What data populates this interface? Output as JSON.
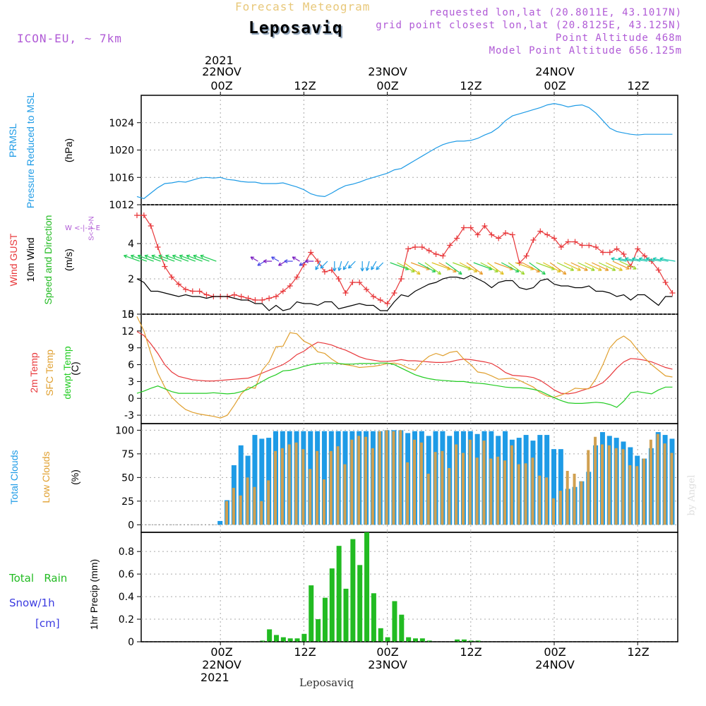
{
  "header": {
    "product": "Forecast Meteogram",
    "station": "Leposaviq",
    "model": "ICON-EU, ~ 7km",
    "requested": "requested lon,lat (20.8011E, 43.1017N)",
    "grid_point": "grid point closest lon,lat (20.8125E, 43.125N)",
    "point_altitude": "Point Altitude 468m",
    "model_altitude": "Model Point Altitude 656.125m",
    "footer_station": "Leposaviq",
    "watermark": "by Angel"
  },
  "colors": {
    "pressure": "#1e9be6",
    "gust": "#e8373a",
    "wind": "#000000",
    "dir": "#22bb22",
    "temp2m": "#e8373a",
    "sfc": "#e0a030",
    "dewpt": "#22cc22",
    "total_clouds": "#1e9be6",
    "low_clouds": "#d0a050",
    "rain": "#22bb22",
    "snow": "#3a3ae0",
    "annot": "#b05ad6",
    "grid": "#aaaaaa",
    "product": "#e8c87a"
  },
  "panel_labels": {
    "p1_a": "PRMSL",
    "p1_b": "Pressure Reduced to MSL",
    "p1_unit": "(hPa)",
    "p2_a": "Wind GUST",
    "p2_b": "10m Wind",
    "p2_c": "Speed and Direction",
    "p2_unit": "(m/s)",
    "compass_ns": "S<-|->N",
    "compass_we": "W <-|-> E",
    "p3_a": "2m Temp",
    "p3_b": "SFC Temp",
    "p3_c": "dewpt Temp",
    "p3_unit": "(C)",
    "p4_a": "Total Clouds",
    "p4_b": "Low Clouds",
    "p4_unit": "(%)",
    "p5_a": "1hr Precip (mm)",
    "rain_label": "Total   Rain",
    "snow_label": "Snow/1h",
    "snow_unit": "[cm]"
  },
  "time_axis": {
    "top_year": "2021",
    "bottom_year": "2021",
    "ticks": [
      {
        "hour": 12,
        "hh": "00Z",
        "date": "22NOV"
      },
      {
        "hour": 24,
        "hh": "12Z",
        "date": ""
      },
      {
        "hour": 36,
        "hh": "00Z",
        "date": "23NOV"
      },
      {
        "hour": 48,
        "hh": "12Z",
        "date": ""
      },
      {
        "hour": 60,
        "hh": "00Z",
        "date": "24NOV"
      },
      {
        "hour": 72,
        "hh": "12Z",
        "date": ""
      }
    ]
  },
  "chart_data": [
    {
      "type": "line",
      "title": "PRMSL Pressure Reduced to MSL",
      "ylabel": "hPa",
      "ylim": [
        1012,
        1028
      ],
      "yticks": [
        1012,
        1016,
        1020,
        1024
      ],
      "x_hours": "0 to 77 hourly, 12 = 22NOV 00Z",
      "series": [
        {
          "name": "PRMSL",
          "x": [
            0,
            1,
            2,
            3,
            4,
            5,
            6,
            7,
            8,
            9,
            10,
            11,
            12,
            13,
            14,
            15,
            16,
            17,
            18,
            19,
            20,
            21,
            22,
            23,
            24,
            25,
            26,
            27,
            28,
            29,
            30,
            31,
            32,
            33,
            34,
            35,
            36,
            37,
            38,
            39,
            40,
            41,
            42,
            43,
            44,
            45,
            46,
            47,
            48,
            49,
            50,
            51,
            52,
            53,
            54,
            55,
            56,
            57,
            58,
            59,
            60,
            61,
            62,
            63,
            64,
            65,
            66,
            67,
            68,
            69,
            70,
            71,
            72,
            73,
            74,
            75,
            76,
            77
          ],
          "values": [
            1013.2,
            1012.9,
            1013.7,
            1014.5,
            1015.1,
            1015.2,
            1015.4,
            1015.3,
            1015.6,
            1015.9,
            1016.0,
            1015.9,
            1016.0,
            1015.7,
            1015.6,
            1015.4,
            1015.3,
            1015.3,
            1015.1,
            1015.1,
            1015.1,
            1015.2,
            1014.9,
            1014.6,
            1014.2,
            1013.6,
            1013.3,
            1013.2,
            1013.7,
            1014.3,
            1014.8,
            1015.0,
            1015.3,
            1015.7,
            1016.0,
            1016.3,
            1016.6,
            1017.1,
            1017.3,
            1017.9,
            1018.5,
            1019.1,
            1019.7,
            1020.3,
            1020.8,
            1021.1,
            1021.3,
            1021.3,
            1021.4,
            1021.7,
            1022.2,
            1022.6,
            1023.3,
            1024.3,
            1025.0,
            1025.3,
            1025.6,
            1025.9,
            1026.2,
            1026.6,
            1026.8,
            1026.6,
            1026.3,
            1026.5,
            1026.6,
            1026.2,
            1025.4,
            1024.3,
            1023.2,
            1022.7,
            1022.5,
            1022.3,
            1022.2,
            1022.3,
            1022.3,
            1022.3,
            1022.3,
            1022.3
          ]
        }
      ]
    },
    {
      "type": "line",
      "title": "Wind GUST / 10m Wind Speed and Direction",
      "ylabel": "m/s",
      "ylim": [
        0,
        6.2
      ],
      "yticks": [
        0,
        2,
        4
      ],
      "series": [
        {
          "name": "Wind GUST",
          "x_start": 0,
          "values": [
            5.6,
            5.6,
            5.0,
            3.8,
            2.7,
            2.1,
            1.7,
            1.4,
            1.3,
            1.3,
            1.1,
            1.0,
            1.0,
            1.0,
            1.1,
            1.0,
            0.9,
            0.8,
            0.8,
            0.9,
            1.0,
            1.3,
            1.6,
            2.1,
            2.8,
            3.5,
            3.0,
            2.4,
            2.5,
            2.0,
            1.2,
            1.8,
            1.8,
            1.4,
            1.0,
            0.8,
            0.6,
            1.2,
            2.0,
            3.7,
            3.8,
            3.8,
            3.6,
            3.4,
            3.3,
            3.9,
            4.3,
            4.9,
            4.9,
            4.5,
            5.0,
            4.5,
            4.3,
            4.6,
            4.5,
            2.9,
            3.3,
            4.2,
            4.7,
            4.5,
            4.3,
            3.8,
            4.1,
            4.1,
            3.9,
            3.9,
            3.8,
            3.5,
            3.5,
            3.7,
            3.4,
            2.7,
            3.7,
            3.3,
            3.0,
            2.5,
            1.8,
            1.2
          ]
        },
        {
          "name": "10m Wind",
          "x_start": 0,
          "values": [
            2.0,
            1.8,
            1.3,
            1.3,
            1.2,
            1.1,
            1.0,
            1.1,
            1.0,
            1.0,
            0.9,
            1.0,
            1.0,
            1.0,
            0.9,
            0.8,
            0.8,
            0.6,
            0.6,
            0.2,
            0.5,
            0.2,
            0.3,
            0.7,
            0.6,
            0.6,
            0.5,
            0.7,
            0.7,
            0.3,
            0.4,
            0.5,
            0.6,
            0.5,
            0.5,
            0.2,
            0.2,
            0.7,
            1.1,
            1.0,
            1.3,
            1.5,
            1.7,
            1.8,
            2.0,
            2.1,
            2.1,
            2.0,
            2.2,
            2.0,
            1.8,
            1.5,
            1.8,
            1.9,
            1.9,
            1.5,
            1.4,
            1.5,
            1.9,
            2.0,
            1.7,
            1.6,
            1.6,
            1.5,
            1.5,
            1.6,
            1.3,
            1.3,
            1.2,
            1.0,
            1.1,
            0.8,
            1.1,
            1.1,
            0.8,
            0.5,
            1.0,
            1.0
          ]
        }
      ],
      "direction_arrows": "every hour, 0-4 m/s color-coded"
    },
    {
      "type": "line",
      "title": "2m Temp / SFC Temp / dewpt Temp",
      "ylabel": "C",
      "ylim": [
        -4.5,
        15
      ],
      "yticks": [
        -3,
        0,
        3,
        6,
        9,
        12,
        15
      ],
      "series": [
        {
          "name": "2m Temp",
          "x_start": 0,
          "values": [
            11.9,
            11.2,
            9.7,
            8.0,
            6.0,
            4.7,
            3.9,
            3.6,
            3.3,
            3.2,
            3.1,
            3.1,
            3.2,
            3.3,
            3.4,
            3.5,
            3.6,
            4.0,
            4.5,
            5.0,
            5.5,
            6.0,
            6.8,
            7.8,
            8.4,
            9.3,
            10.0,
            9.8,
            9.5,
            9.0,
            8.6,
            8.0,
            7.4,
            7.0,
            6.8,
            6.6,
            6.6,
            6.7,
            6.9,
            6.7,
            6.7,
            6.6,
            6.5,
            6.4,
            6.4,
            6.5,
            6.8,
            7.0,
            6.9,
            6.7,
            6.5,
            6.2,
            5.5,
            4.6,
            4.1,
            4.0,
            3.9,
            3.7,
            3.2,
            2.4,
            1.5,
            0.9,
            0.8,
            1.0,
            1.4,
            1.8,
            2.2,
            2.8,
            4.0,
            5.4,
            6.5,
            7.1,
            7.0,
            6.8,
            6.5,
            6.0,
            5.5,
            5.2
          ]
        },
        {
          "name": "SFC Temp",
          "x_start": 0,
          "values": [
            14.6,
            12.0,
            8.0,
            4.5,
            2.0,
            0.2,
            -1.0,
            -2.0,
            -2.5,
            -2.8,
            -3.0,
            -3.2,
            -3.5,
            -3.0,
            -1.2,
            0.8,
            2.0,
            1.8,
            5.0,
            6.5,
            9.2,
            9.3,
            11.7,
            11.5,
            10.2,
            9.6,
            8.3,
            8.0,
            7.0,
            6.2,
            6.0,
            5.8,
            5.5,
            5.6,
            5.7,
            5.9,
            6.2,
            6.3,
            6.0,
            5.4,
            5.0,
            6.5,
            7.5,
            8.0,
            7.6,
            8.2,
            8.4,
            7.0,
            6.0,
            4.7,
            4.5,
            4.0,
            3.4,
            3.5,
            3.6,
            3.2,
            2.6,
            2.0,
            1.0,
            0.4,
            0.2,
            0.6,
            1.1,
            1.8,
            1.7,
            1.7,
            3.5,
            6.0,
            9.0,
            10.4,
            11.1,
            10.2,
            8.6,
            7.2,
            6.0,
            5.0,
            4.0,
            3.8
          ]
        },
        {
          "name": "dewpt Temp",
          "x_start": 0,
          "values": [
            0.9,
            1.3,
            1.8,
            2.2,
            1.7,
            1.2,
            0.9,
            0.9,
            0.9,
            0.9,
            0.9,
            1.0,
            0.9,
            0.8,
            0.9,
            1.2,
            1.6,
            2.3,
            3.0,
            3.7,
            4.2,
            4.9,
            5.0,
            5.3,
            5.7,
            6.0,
            6.2,
            6.3,
            6.3,
            6.2,
            6.1,
            6.1,
            6.2,
            6.2,
            6.2,
            6.3,
            6.3,
            6.0,
            5.4,
            4.8,
            4.2,
            3.8,
            3.5,
            3.3,
            3.2,
            3.1,
            3.0,
            3.0,
            2.8,
            2.7,
            2.6,
            2.4,
            2.2,
            2.0,
            1.9,
            1.9,
            1.8,
            1.6,
            1.3,
            0.7,
            0.1,
            -0.4,
            -0.8,
            -0.9,
            -0.9,
            -0.8,
            -0.7,
            -0.8,
            -1.1,
            -1.6,
            -0.5,
            1.0,
            1.2,
            1.0,
            0.8,
            1.5,
            2.0,
            2.0
          ]
        }
      ]
    },
    {
      "type": "bar",
      "title": "Total Clouds / Low Clouds",
      "ylabel": "%",
      "ylim": [
        -8,
        107
      ],
      "yticks": [
        0,
        25,
        50,
        75,
        100
      ],
      "series": [
        {
          "name": "Total Clouds",
          "x_start": 0,
          "values": [
            0,
            0,
            0,
            0,
            0,
            0,
            0,
            0,
            0,
            0,
            0,
            0,
            4,
            26,
            63,
            84,
            73,
            95,
            91,
            92,
            99,
            99,
            99,
            99,
            99,
            99,
            99,
            99,
            99,
            99,
            99,
            99,
            99,
            99,
            99,
            99,
            100,
            100,
            100,
            97,
            99,
            99,
            94,
            99,
            99,
            94,
            99,
            99,
            99,
            96,
            99,
            99,
            94,
            99,
            90,
            92,
            95,
            89,
            95,
            95,
            80,
            80,
            38,
            40,
            46,
            56,
            84,
            98,
            94,
            92,
            88,
            82,
            73,
            70,
            81,
            98,
            95,
            91
          ]
        },
        {
          "name": "Low Clouds",
          "x_start": 0,
          "values": [
            0,
            0,
            0,
            0,
            0,
            0,
            0,
            0,
            0,
            0,
            0,
            0,
            0,
            25,
            39,
            31,
            50,
            40,
            25,
            47,
            78,
            81,
            85,
            87,
            80,
            59,
            78,
            48,
            78,
            83,
            64,
            90,
            94,
            93,
            81,
            99,
            100,
            99,
            100,
            66,
            90,
            87,
            54,
            77,
            78,
            60,
            85,
            76,
            90,
            71,
            89,
            70,
            72,
            68,
            84,
            64,
            65,
            71,
            52,
            50,
            28,
            36,
            57,
            54,
            46,
            79,
            93,
            85,
            84,
            81,
            80,
            63,
            62,
            70,
            90,
            96,
            86,
            76
          ]
        }
      ]
    },
    {
      "type": "bar",
      "title": "1hr Precip",
      "ylabel": "mm",
      "ylim": [
        0,
        0.97
      ],
      "yticks": [
        0,
        0.2,
        0.4,
        0.6,
        0.8
      ],
      "series": [
        {
          "name": "Total Rain",
          "x_start": 0,
          "values": [
            0,
            0,
            0,
            0,
            0,
            0,
            0,
            0,
            0,
            0,
            0,
            0,
            0,
            0,
            0,
            0,
            0,
            0,
            0.01,
            0.11,
            0.06,
            0.04,
            0.03,
            0.03,
            0.07,
            0.5,
            0.2,
            0.39,
            0.65,
            0.85,
            0.47,
            0.91,
            0.68,
            0.97,
            0.43,
            0.12,
            0.04,
            0.36,
            0.24,
            0.04,
            0.03,
            0.03,
            0.01,
            0,
            0,
            0,
            0.02,
            0.02,
            0.01,
            0.01,
            0,
            0,
            0,
            0,
            0,
            0,
            0,
            0,
            0,
            0,
            0,
            0,
            0,
            0,
            0,
            0,
            0,
            0,
            0,
            0,
            0,
            0,
            0,
            0,
            0,
            0,
            0,
            0
          ]
        },
        {
          "name": "Snow/1h",
          "x_start": 0,
          "values": [
            0
          ]
        }
      ]
    }
  ]
}
